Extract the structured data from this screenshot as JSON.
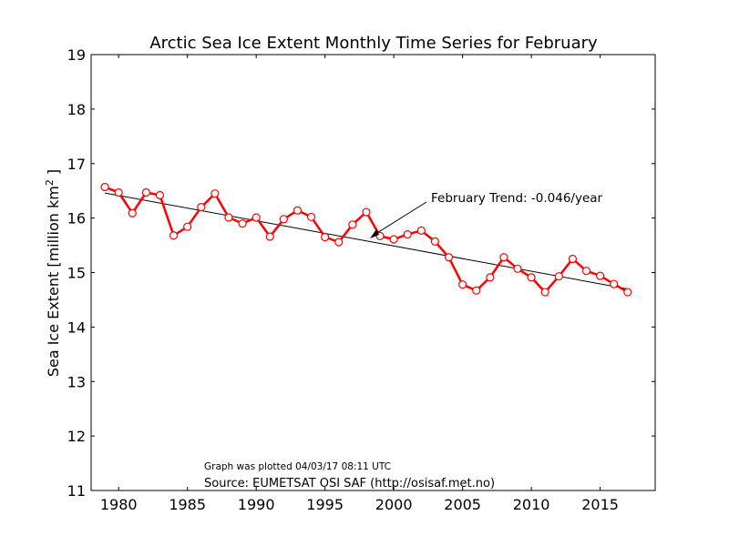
{
  "chart_data": {
    "type": "line",
    "title": "Arctic Sea Ice Extent Monthly Time Series for February",
    "ylabel": "Sea Ice Extent [million km",
    "ylabel_sup": "2",
    "ylabel_end": " ]",
    "xlabel": "",
    "xlim": [
      1978,
      2019
    ],
    "ylim": [
      11,
      19
    ],
    "x_ticks": [
      1980,
      1985,
      1990,
      1995,
      2000,
      2005,
      2010,
      2015
    ],
    "y_ticks": [
      11,
      12,
      13,
      14,
      15,
      16,
      17,
      18,
      19
    ],
    "grid": false,
    "series": [
      {
        "color": "#ff0000",
        "marker": "open-circle",
        "x": [
          1979,
          1980,
          1981,
          1982,
          1983,
          1984,
          1985,
          1986,
          1987,
          1988,
          1989,
          1990,
          1991,
          1992,
          1993,
          1994,
          1995,
          1996,
          1997,
          1998,
          1999,
          2000,
          2001,
          2002,
          2003,
          2004,
          2005,
          2006,
          2007,
          2008,
          2009,
          2010,
          2011,
          2012,
          2013,
          2014,
          2015,
          2016,
          2017
        ],
        "values": [
          16.57,
          16.47,
          16.09,
          16.47,
          16.42,
          15.68,
          15.84,
          16.2,
          16.45,
          16.01,
          15.9,
          16.01,
          15.66,
          15.98,
          16.14,
          16.02,
          15.65,
          15.56,
          15.88,
          16.11,
          15.67,
          15.61,
          15.7,
          15.77,
          15.57,
          15.28,
          14.78,
          14.67,
          14.91,
          15.28,
          15.07,
          14.91,
          14.64,
          14.93,
          15.25,
          15.03,
          14.94,
          14.79,
          14.64
        ]
      }
    ],
    "trend": {
      "color": "#000000",
      "x": [
        1979,
        2017
      ],
      "values": [
        16.46,
        14.7
      ]
    },
    "annotations": {
      "trend_label": "February Trend: -0.046/year",
      "plotted": "Graph was plotted 04/03/17 08:11 UTC",
      "source": "Source: EUMETSAT OSI SAF (http://osisaf.met.no)"
    }
  }
}
